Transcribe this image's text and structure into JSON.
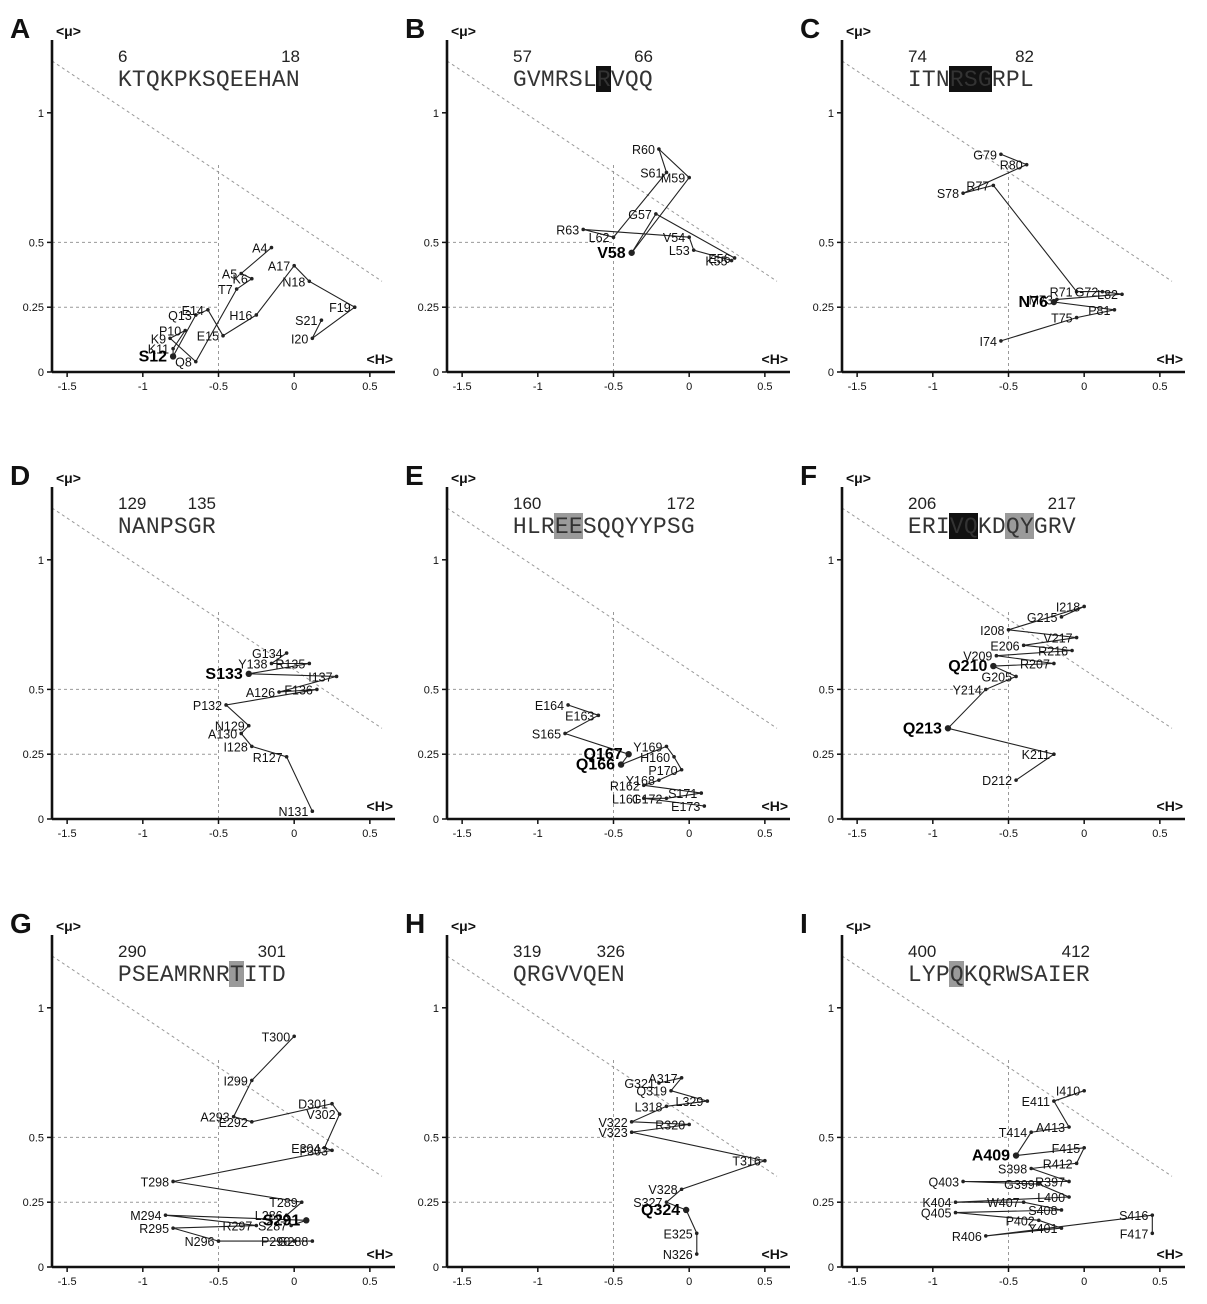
{
  "figure": {
    "y_axis_label": "<μ>",
    "x_axis_label": "<H>",
    "x_ticks": [
      "-1.5",
      "-1",
      "-0.5",
      "0",
      "0.5"
    ],
    "y_ticks": [
      "0",
      "0.25",
      "0.5",
      "1"
    ],
    "highlight_colors": {
      "black": "#111111",
      "gray": "#9a9a9a"
    }
  },
  "chart_data": [
    {
      "panel": "A",
      "type": "line",
      "start": "6",
      "end": "18",
      "sequence": "KTQKPKSQEEHAN",
      "highlights": [],
      "xlim": [
        -1.6,
        0.6
      ],
      "ylim": [
        0,
        1.25
      ],
      "points": [
        {
          "label": "A4",
          "x": -0.15,
          "y": 0.48
        },
        {
          "label": "A5",
          "x": -0.35,
          "y": 0.38
        },
        {
          "label": "K6",
          "x": -0.28,
          "y": 0.36
        },
        {
          "label": "T7",
          "x": -0.38,
          "y": 0.32
        },
        {
          "label": "Q8",
          "x": -0.65,
          "y": 0.04
        },
        {
          "label": "K9",
          "x": -0.82,
          "y": 0.13
        },
        {
          "label": "P10",
          "x": -0.72,
          "y": 0.16
        },
        {
          "label": "K11",
          "x": -0.8,
          "y": 0.09
        },
        {
          "label": "S12",
          "x": -0.8,
          "y": 0.06,
          "bold": true
        },
        {
          "label": "Q13",
          "x": -0.65,
          "y": 0.22
        },
        {
          "label": "E14",
          "x": -0.57,
          "y": 0.24
        },
        {
          "label": "E15",
          "x": -0.47,
          "y": 0.14
        },
        {
          "label": "H16",
          "x": -0.25,
          "y": 0.22
        },
        {
          "label": "A17",
          "x": 0.0,
          "y": 0.41
        },
        {
          "label": "N18",
          "x": 0.1,
          "y": 0.35
        },
        {
          "label": "F19",
          "x": 0.4,
          "y": 0.25
        },
        {
          "label": "I20",
          "x": 0.12,
          "y": 0.13
        },
        {
          "label": "S21",
          "x": 0.18,
          "y": 0.2
        }
      ]
    },
    {
      "panel": "B",
      "type": "line",
      "start": "57",
      "end": "66",
      "sequence": "GVMRSLRVQQ",
      "highlights": [
        {
          "index": 6,
          "color": "black"
        }
      ],
      "xlim": [
        -1.6,
        0.6
      ],
      "ylim": [
        0,
        1.25
      ],
      "points": [
        {
          "label": "E56",
          "x": 0.3,
          "y": 0.44
        },
        {
          "label": "G57",
          "x": -0.22,
          "y": 0.61
        },
        {
          "label": "V58",
          "x": -0.38,
          "y": 0.46,
          "bold": true
        },
        {
          "label": "M59",
          "x": 0.0,
          "y": 0.75
        },
        {
          "label": "R60",
          "x": -0.2,
          "y": 0.86
        },
        {
          "label": "S61",
          "x": -0.15,
          "y": 0.77
        },
        {
          "label": "L62",
          "x": -0.5,
          "y": 0.52
        },
        {
          "label": "R63",
          "x": -0.7,
          "y": 0.55
        },
        {
          "label": "V54",
          "x": 0.0,
          "y": 0.52
        },
        {
          "label": "L53",
          "x": 0.03,
          "y": 0.47
        },
        {
          "label": "K55",
          "x": 0.28,
          "y": 0.43
        }
      ]
    },
    {
      "panel": "C",
      "type": "line",
      "start": "74",
      "end": "82",
      "sequence": "ITNRSGRPL",
      "highlights": [
        {
          "index": 3,
          "color": "black"
        },
        {
          "index": 4,
          "color": "black"
        },
        {
          "index": 5,
          "color": "black"
        }
      ],
      "xlim": [
        -1.6,
        0.6
      ],
      "ylim": [
        0,
        1.25
      ],
      "points": [
        {
          "label": "G79",
          "x": -0.55,
          "y": 0.84
        },
        {
          "label": "R80",
          "x": -0.38,
          "y": 0.8
        },
        {
          "label": "S78",
          "x": -0.8,
          "y": 0.69
        },
        {
          "label": "R77",
          "x": -0.6,
          "y": 0.72
        },
        {
          "label": "R71",
          "x": -0.05,
          "y": 0.31
        },
        {
          "label": "G72",
          "x": 0.12,
          "y": 0.31
        },
        {
          "label": "L82",
          "x": 0.25,
          "y": 0.3
        },
        {
          "label": "M73",
          "x": -0.18,
          "y": 0.28
        },
        {
          "label": "N76",
          "x": -0.2,
          "y": 0.27,
          "bold": true
        },
        {
          "label": "P81",
          "x": 0.2,
          "y": 0.24
        },
        {
          "label": "T75",
          "x": -0.05,
          "y": 0.21
        },
        {
          "label": "I74",
          "x": -0.55,
          "y": 0.12
        }
      ]
    },
    {
      "panel": "D",
      "type": "line",
      "start": "129",
      "end": "135",
      "sequence": "NANPSGR",
      "highlights": [],
      "xlim": [
        -1.6,
        0.6
      ],
      "ylim": [
        0,
        1.25
      ],
      "points": [
        {
          "label": "G134",
          "x": -0.05,
          "y": 0.64
        },
        {
          "label": "Y138",
          "x": -0.15,
          "y": 0.6
        },
        {
          "label": "R135",
          "x": 0.1,
          "y": 0.6
        },
        {
          "label": "S133",
          "x": -0.3,
          "y": 0.56,
          "bold": true
        },
        {
          "label": "I137",
          "x": 0.28,
          "y": 0.55
        },
        {
          "label": "A126",
          "x": -0.1,
          "y": 0.49
        },
        {
          "label": "F136",
          "x": 0.15,
          "y": 0.5
        },
        {
          "label": "P132",
          "x": -0.45,
          "y": 0.44
        },
        {
          "label": "N129",
          "x": -0.3,
          "y": 0.36
        },
        {
          "label": "A130",
          "x": -0.35,
          "y": 0.33
        },
        {
          "label": "I128",
          "x": -0.28,
          "y": 0.28
        },
        {
          "label": "R127",
          "x": -0.05,
          "y": 0.24
        },
        {
          "label": "N131",
          "x": 0.12,
          "y": 0.03
        }
      ]
    },
    {
      "panel": "E",
      "type": "line",
      "start": "160",
      "end": "172",
      "sequence": "HLREESQQYYPSG",
      "highlights": [
        {
          "index": 3,
          "color": "gray"
        },
        {
          "index": 4,
          "color": "gray"
        }
      ],
      "xlim": [
        -1.6,
        0.6
      ],
      "ylim": [
        0,
        1.25
      ],
      "points": [
        {
          "label": "E164",
          "x": -0.8,
          "y": 0.44
        },
        {
          "label": "E163",
          "x": -0.6,
          "y": 0.4
        },
        {
          "label": "S165",
          "x": -0.82,
          "y": 0.33
        },
        {
          "label": "Q167",
          "x": -0.4,
          "y": 0.25,
          "bold": true
        },
        {
          "label": "Q166",
          "x": -0.45,
          "y": 0.21,
          "bold": true
        },
        {
          "label": "Y169",
          "x": -0.15,
          "y": 0.28
        },
        {
          "label": "H160",
          "x": -0.1,
          "y": 0.24
        },
        {
          "label": "P170",
          "x": -0.05,
          "y": 0.19
        },
        {
          "label": "Y168",
          "x": -0.2,
          "y": 0.15
        },
        {
          "label": "R162",
          "x": -0.3,
          "y": 0.13
        },
        {
          "label": "S171",
          "x": 0.08,
          "y": 0.1
        },
        {
          "label": "G172",
          "x": -0.15,
          "y": 0.08
        },
        {
          "label": "L161",
          "x": -0.3,
          "y": 0.08
        },
        {
          "label": "E173",
          "x": 0.1,
          "y": 0.05
        }
      ]
    },
    {
      "panel": "F",
      "type": "line",
      "start": "206",
      "end": "217",
      "sequence": "ERIVQKDQYGRV",
      "highlights": [
        {
          "index": 3,
          "color": "black"
        },
        {
          "index": 4,
          "color": "black"
        },
        {
          "index": 7,
          "color": "gray"
        },
        {
          "index": 8,
          "color": "gray"
        }
      ],
      "xlim": [
        -1.6,
        0.6
      ],
      "ylim": [
        0,
        1.25
      ],
      "points": [
        {
          "label": "G215",
          "x": -0.15,
          "y": 0.78
        },
        {
          "label": "I218",
          "x": 0.0,
          "y": 0.82
        },
        {
          "label": "I208",
          "x": -0.5,
          "y": 0.73
        },
        {
          "label": "V217",
          "x": -0.05,
          "y": 0.7
        },
        {
          "label": "E206",
          "x": -0.4,
          "y": 0.67
        },
        {
          "label": "R216",
          "x": -0.08,
          "y": 0.65
        },
        {
          "label": "V209",
          "x": -0.58,
          "y": 0.63
        },
        {
          "label": "R207",
          "x": -0.2,
          "y": 0.6
        },
        {
          "label": "Q210",
          "x": -0.6,
          "y": 0.59,
          "bold": true
        },
        {
          "label": "G205",
          "x": -0.45,
          "y": 0.55
        },
        {
          "label": "Y214",
          "x": -0.65,
          "y": 0.5
        },
        {
          "label": "Q213",
          "x": -0.9,
          "y": 0.35,
          "bold": true
        },
        {
          "label": "K211",
          "x": -0.2,
          "y": 0.25
        },
        {
          "label": "D212",
          "x": -0.45,
          "y": 0.15
        }
      ]
    },
    {
      "panel": "G",
      "type": "line",
      "start": "290",
      "end": "301",
      "sequence": "PSEAMRNRTITD",
      "highlights": [
        {
          "index": 8,
          "color": "gray"
        }
      ],
      "xlim": [
        -1.6,
        0.6
      ],
      "ylim": [
        0,
        1.25
      ],
      "points": [
        {
          "label": "T300",
          "x": 0.0,
          "y": 0.89
        },
        {
          "label": "I299",
          "x": -0.28,
          "y": 0.72
        },
        {
          "label": "A293",
          "x": -0.4,
          "y": 0.58
        },
        {
          "label": "E292",
          "x": -0.28,
          "y": 0.56
        },
        {
          "label": "D301",
          "x": 0.25,
          "y": 0.63
        },
        {
          "label": "V302",
          "x": 0.3,
          "y": 0.59
        },
        {
          "label": "E304",
          "x": 0.2,
          "y": 0.46
        },
        {
          "label": "F303",
          "x": 0.25,
          "y": 0.45
        },
        {
          "label": "T298",
          "x": -0.8,
          "y": 0.33
        },
        {
          "label": "T289",
          "x": 0.05,
          "y": 0.25
        },
        {
          "label": "L286",
          "x": -0.05,
          "y": 0.2
        },
        {
          "label": "S287",
          "x": -0.02,
          "y": 0.16
        },
        {
          "label": "S291",
          "x": 0.08,
          "y": 0.18,
          "bold": true
        },
        {
          "label": "M294",
          "x": -0.85,
          "y": 0.2
        },
        {
          "label": "R297",
          "x": -0.25,
          "y": 0.16
        },
        {
          "label": "R295",
          "x": -0.8,
          "y": 0.15
        },
        {
          "label": "N296",
          "x": -0.5,
          "y": 0.1
        },
        {
          "label": "P290",
          "x": 0.0,
          "y": 0.1
        },
        {
          "label": "G288",
          "x": 0.12,
          "y": 0.1
        }
      ]
    },
    {
      "panel": "H",
      "type": "line",
      "start": "319",
      "end": "326",
      "sequence": "QRGVVQEN",
      "highlights": [],
      "xlim": [
        -1.6,
        0.6
      ],
      "ylim": [
        0,
        1.25
      ],
      "points": [
        {
          "label": "G321",
          "x": -0.2,
          "y": 0.71
        },
        {
          "label": "A317",
          "x": -0.05,
          "y": 0.73
        },
        {
          "label": "Q319",
          "x": -0.12,
          "y": 0.68
        },
        {
          "label": "L329",
          "x": 0.12,
          "y": 0.64
        },
        {
          "label": "L318",
          "x": -0.15,
          "y": 0.62
        },
        {
          "label": "V322",
          "x": -0.38,
          "y": 0.56
        },
        {
          "label": "R320",
          "x": 0.0,
          "y": 0.55
        },
        {
          "label": "V323",
          "x": -0.38,
          "y": 0.52
        },
        {
          "label": "T316",
          "x": 0.5,
          "y": 0.41
        },
        {
          "label": "V328",
          "x": -0.05,
          "y": 0.3
        },
        {
          "label": "S327",
          "x": -0.15,
          "y": 0.25
        },
        {
          "label": "Q324",
          "x": -0.02,
          "y": 0.22,
          "bold": true
        },
        {
          "label": "E325",
          "x": 0.05,
          "y": 0.13
        },
        {
          "label": "N326",
          "x": 0.05,
          "y": 0.05
        }
      ]
    },
    {
      "panel": "I",
      "type": "line",
      "start": "400",
      "end": "412",
      "sequence": "LYPQKQRWSAIER",
      "highlights": [
        {
          "index": 3,
          "color": "gray"
        }
      ],
      "xlim": [
        -1.6,
        0.6
      ],
      "ylim": [
        0,
        1.25
      ],
      "points": [
        {
          "label": "I410",
          "x": 0.0,
          "y": 0.68
        },
        {
          "label": "E411",
          "x": -0.2,
          "y": 0.64
        },
        {
          "label": "A413",
          "x": -0.1,
          "y": 0.54
        },
        {
          "label": "T414",
          "x": -0.35,
          "y": 0.52
        },
        {
          "label": "A409",
          "x": -0.45,
          "y": 0.43,
          "bold": true
        },
        {
          "label": "F415",
          "x": 0.0,
          "y": 0.46
        },
        {
          "label": "R412",
          "x": -0.05,
          "y": 0.4
        },
        {
          "label": "S398",
          "x": -0.35,
          "y": 0.38
        },
        {
          "label": "R397",
          "x": -0.1,
          "y": 0.33
        },
        {
          "label": "Q403",
          "x": -0.8,
          "y": 0.33
        },
        {
          "label": "G399",
          "x": -0.3,
          "y": 0.32
        },
        {
          "label": "L400",
          "x": -0.1,
          "y": 0.27
        },
        {
          "label": "K404",
          "x": -0.85,
          "y": 0.25
        },
        {
          "label": "W407",
          "x": -0.4,
          "y": 0.25
        },
        {
          "label": "S408",
          "x": -0.15,
          "y": 0.22
        },
        {
          "label": "Q405",
          "x": -0.85,
          "y": 0.21
        },
        {
          "label": "P402",
          "x": -0.3,
          "y": 0.18
        },
        {
          "label": "Y401",
          "x": -0.15,
          "y": 0.15
        },
        {
          "label": "R406",
          "x": -0.65,
          "y": 0.12
        },
        {
          "label": "S416",
          "x": 0.45,
          "y": 0.2
        },
        {
          "label": "F417",
          "x": 0.45,
          "y": 0.13
        }
      ]
    }
  ]
}
